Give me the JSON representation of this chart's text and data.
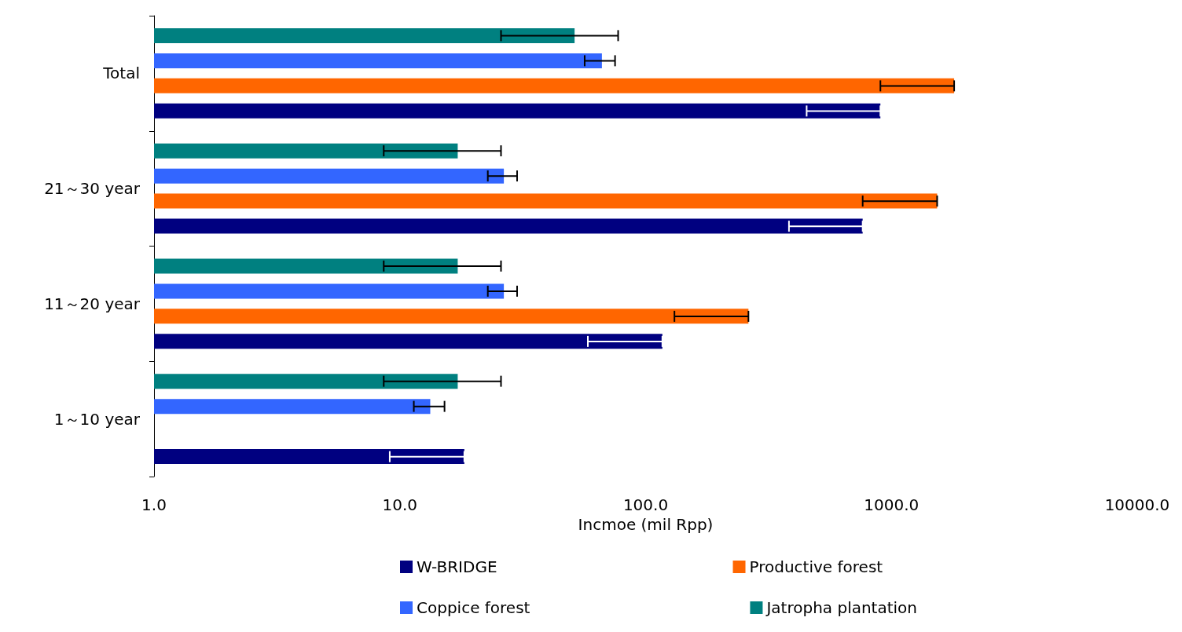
{
  "chart_data": {
    "type": "bar",
    "orientation": "horizontal",
    "log": "x",
    "xlabel": "Incmoe (mil Rpp)",
    "categories": [
      "Total",
      "21～30 year",
      "11～20 year",
      "1～10 year"
    ],
    "xlim": [
      1,
      10000
    ],
    "xticks": [
      {
        "value": 1,
        "label": "1.0"
      },
      {
        "value": 10,
        "label": "10.0"
      },
      {
        "value": 100,
        "label": "100.0"
      },
      {
        "value": 1000,
        "label": "1000.0"
      },
      {
        "value": 10000,
        "label": "10000.0"
      }
    ],
    "grid": false,
    "legend": "bottom",
    "series": [
      {
        "name": "W-BRIDGE",
        "color": "#000080",
        "values": [
          902,
          764,
          117,
          18.3
        ],
        "errors": [
          [
            452,
            902
          ],
          [
            383,
            764
          ],
          [
            58.2,
            117
          ],
          [
            9.1,
            18.3
          ]
        ]
      },
      {
        "name": "Productive forest",
        "color": "#ff6600",
        "values": [
          1800,
          1535,
          262,
          1
        ],
        "errors": [
          [
            902,
            1800
          ],
          [
            764,
            1535
          ],
          [
            131,
            262
          ],
          null
        ]
      },
      {
        "name": "Coppice forest",
        "color": "#3366ff",
        "values": [
          66.4,
          26.5,
          26.5,
          13.3
        ],
        "errors": [
          [
            56.5,
            75.1
          ],
          [
            22.8,
            30.0
          ],
          [
            22.8,
            30.0
          ],
          [
            11.4,
            15.2
          ]
        ]
      },
      {
        "name": "Jatropha plantation",
        "color": "#008080",
        "values": [
          51.4,
          17.2,
          17.2,
          17.2
        ],
        "errors": [
          [
            25.8,
            77.3
          ],
          [
            8.6,
            25.8
          ],
          [
            8.6,
            25.8
          ],
          [
            8.6,
            25.8
          ]
        ]
      }
    ]
  }
}
